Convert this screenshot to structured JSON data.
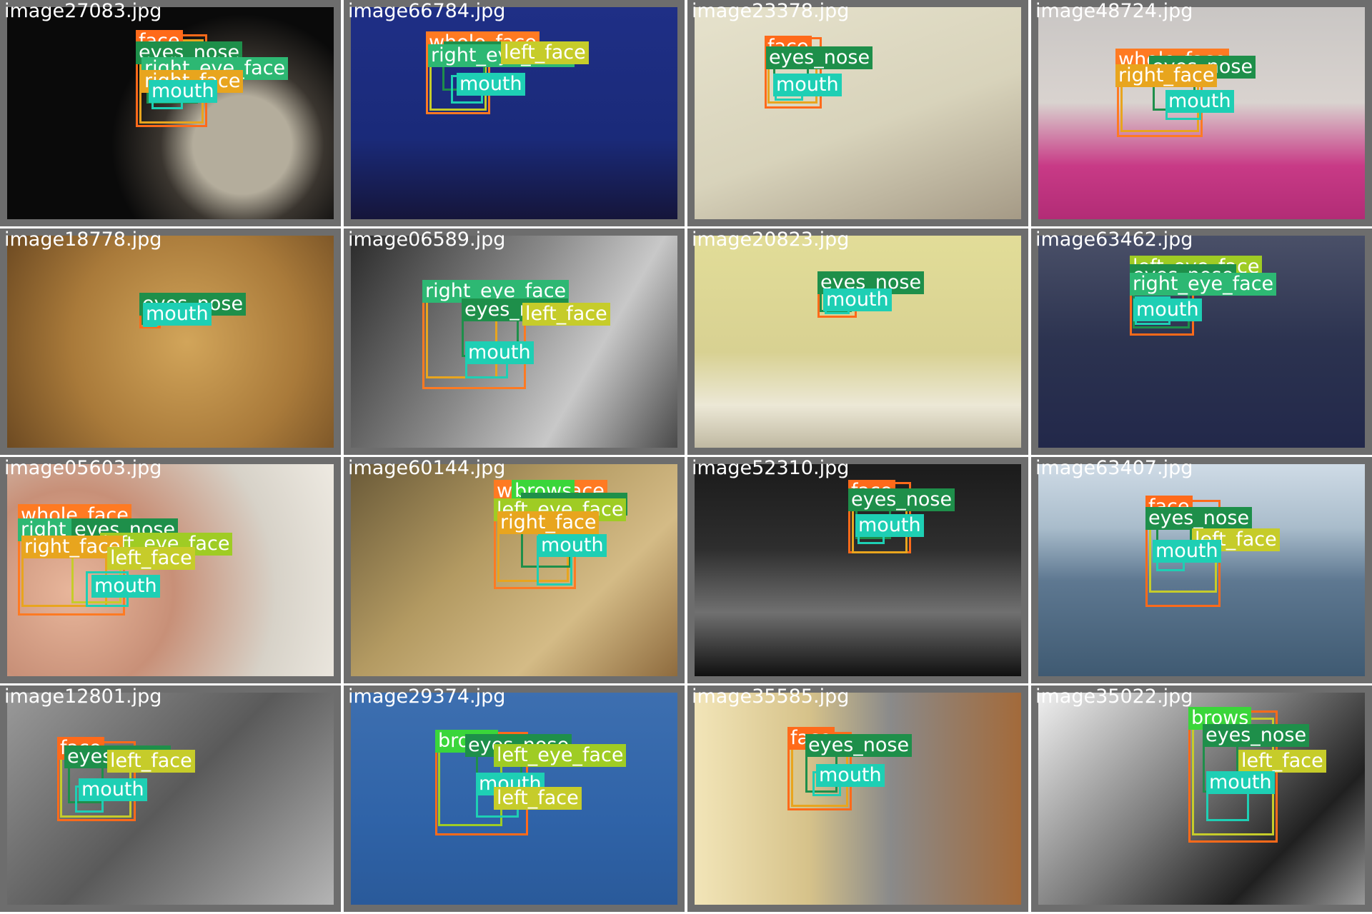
{
  "class_colors": {
    "face": "#ff6a1a",
    "whole_face": "#ff7a22",
    "brows": "#3ad63a",
    "right_eye_face": "#2db873",
    "left_eye_face": "#9fcc24",
    "right_face": "#e8a51e",
    "left_face": "#c6cc2a",
    "eyes_nose": "#1e8f4a",
    "mouth": "#1ecfb4"
  },
  "tiles": [
    {
      "filename": "image27083.jpg",
      "scene": "dark",
      "labels": [
        "face",
        "eyes_nose",
        "right_eye_face",
        "right_face",
        "mouth"
      ]
    },
    {
      "filename": "image66784.jpg",
      "scene": "blue",
      "labels": [
        "whole_face",
        "eyes_nose",
        "right_eye_face",
        "left_face",
        "mouth"
      ]
    },
    {
      "filename": "image23378.jpg",
      "scene": "beige",
      "labels": [
        "face",
        "eyes_nose",
        "right_face",
        "mouth"
      ]
    },
    {
      "filename": "image48724.jpg",
      "scene": "pink",
      "labels": [
        "whole_face",
        "eyes_nose",
        "left_eye_face",
        "right_face",
        "mouth"
      ]
    },
    {
      "filename": "image18778.jpg",
      "scene": "dome",
      "labels": [
        "eyes_nose",
        "face",
        "mouth"
      ]
    },
    {
      "filename": "image06589.jpg",
      "scene": "gray",
      "labels": [
        "right_eye_face",
        "eyes_nose",
        "left_face",
        "mouth"
      ]
    },
    {
      "filename": "image20823.jpg",
      "scene": "room",
      "labels": [
        "face",
        "eyes_nose",
        "mouth"
      ]
    },
    {
      "filename": "image63462.jpg",
      "scene": "navy",
      "labels": [
        "left_eye_face",
        "eyes_nose",
        "right_eye_face",
        "mouth"
      ]
    },
    {
      "filename": "image05603.jpg",
      "scene": "blur",
      "labels": [
        "whole_face",
        "brows",
        "right_eye_face",
        "eyes_nose",
        "left_eye_face",
        "right_face",
        "left_face",
        "mouth"
      ]
    },
    {
      "filename": "image60144.jpg",
      "scene": "tan",
      "labels": [
        "whole_face",
        "brows",
        "eyes_nose",
        "left_eye_face",
        "right_face",
        "mouth"
      ]
    },
    {
      "filename": "image52310.jpg",
      "scene": "night",
      "labels": [
        "face",
        "eyes_nose",
        "right_face",
        "mouth"
      ]
    },
    {
      "filename": "image63407.jpg",
      "scene": "lake",
      "labels": [
        "face",
        "eyes_nose",
        "left_face",
        "mouth"
      ]
    },
    {
      "filename": "image12801.jpg",
      "scene": "frame",
      "labels": [
        "face",
        "eyes_nose",
        "left_face",
        "mouth"
      ]
    },
    {
      "filename": "image29374.jpg",
      "scene": "sky",
      "labels": [
        "brows",
        "eyes_nose",
        "left_eye_face",
        "mouth",
        "left_face"
      ]
    },
    {
      "filename": "image35585.jpg",
      "scene": "cafe",
      "labels": [
        "face",
        "eyes_nose",
        "right_face",
        "mouth"
      ]
    },
    {
      "filename": "image35022.jpg",
      "scene": "bw",
      "labels": [
        "brows",
        "face",
        "eyes_nose",
        "left_face",
        "mouth"
      ]
    }
  ]
}
